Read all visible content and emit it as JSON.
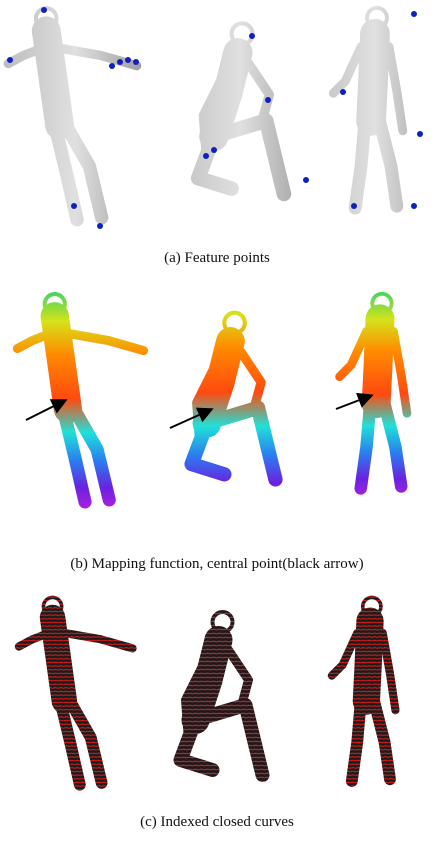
{
  "panels": [
    {
      "caption": "(a)  Feature points"
    },
    {
      "caption": "(b)  Mapping function, central point(black arrow)"
    },
    {
      "caption": "(c)  Indexed closed curves"
    }
  ]
}
